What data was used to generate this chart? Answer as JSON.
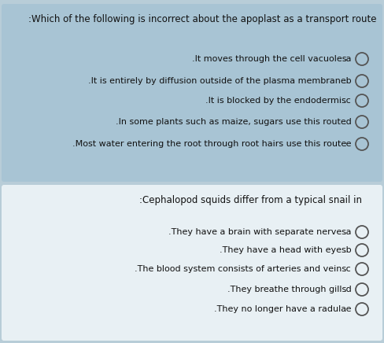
{
  "bg_color": "#b8cdd8",
  "q1_bg": "#a8c4d4",
  "q2_bg": "#e8f0f4",
  "q1_title": ":Which of the following is incorrect about the apoplast as a transport route",
  "q2_title": ":Cephalopod squids differ from a typical snail in",
  "q1_texts": [
    ".It moves through the cell vacuoles",
    ".It is entirely by diffusion outside of the plasma membrane",
    ".It is blocked by the endodermis",
    ".In some plants such as maize, sugars use this route",
    ".Most water entering the root through root hairs use this route"
  ],
  "q2_texts": [
    ".They have a brain with separate nerves",
    ".They have a head with eyes",
    ".The blood system consists of arteries and veins",
    ".They breathe through gills",
    ".They no longer have a radula"
  ],
  "labels": [
    ".a",
    ".b",
    ".c",
    ".d",
    ".e"
  ],
  "title_fontsize": 8.5,
  "option_fontsize": 8.0,
  "text_color": "#111111",
  "circle_color": "#555555",
  "circle_size": 7
}
